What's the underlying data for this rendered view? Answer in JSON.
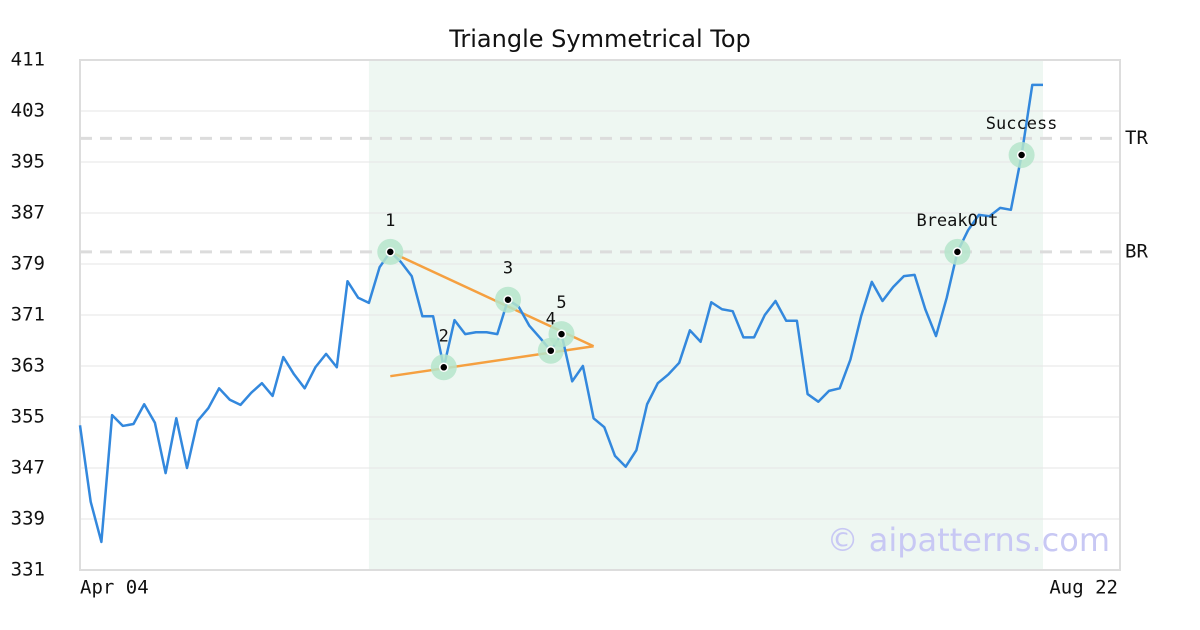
{
  "chart_data": {
    "type": "line",
    "title": "Triangle Symmetrical Top",
    "categories": [
      "Apr 04",
      null,
      null,
      null,
      null,
      null,
      null,
      null,
      null,
      null,
      null,
      null,
      null,
      null,
      null,
      null,
      null,
      null,
      null,
      null,
      null,
      null,
      null,
      null,
      null,
      null,
      null,
      null,
      null,
      null,
      null,
      null,
      null,
      null,
      null,
      null,
      null,
      null,
      null,
      null,
      null,
      null,
      null,
      null,
      null,
      null,
      null,
      null,
      null,
      null,
      null,
      null,
      null,
      null,
      null,
      null,
      null,
      null,
      null,
      null,
      null,
      null,
      null,
      null,
      null,
      null,
      null,
      null,
      null,
      null,
      null,
      null,
      null,
      null,
      null,
      null,
      null,
      null,
      null,
      null,
      null,
      null,
      null,
      null,
      null,
      null,
      null,
      null,
      null,
      null,
      "Aug 22"
    ],
    "series": [
      {
        "color": "#3388dd",
        "values": [
          353.7,
          341.7,
          335.4,
          355.3,
          353.6,
          353.9,
          357.0,
          354.1,
          346.2,
          354.8,
          347.0,
          354.4,
          356.4,
          359.5,
          357.7,
          356.9,
          358.8,
          360.3,
          358.3,
          364.4,
          361.7,
          359.5,
          362.8,
          364.9,
          362.8,
          376.3,
          373.7,
          372.9,
          378.5,
          380.9,
          379.3,
          377.1,
          370.8,
          370.8,
          362.8,
          370.2,
          368.0,
          368.3,
          368.3,
          368.0,
          373.4,
          372.3,
          369.3,
          367.4,
          365.4,
          368.0,
          360.6,
          363.0,
          354.8,
          353.4,
          348.9,
          347.2,
          349.8,
          357.0,
          360.3,
          361.7,
          363.5,
          368.6,
          366.8,
          373.0,
          371.9,
          371.6,
          367.5,
          367.5,
          371.0,
          373.2,
          370.1,
          370.1,
          358.6,
          357.4,
          359.1,
          359.5,
          364.0,
          370.8,
          376.2,
          373.2,
          375.4,
          377.1,
          377.3,
          371.9,
          367.7,
          373.7,
          380.9,
          384.3,
          386.7,
          386.5,
          387.8,
          387.5,
          396.1,
          407.1,
          407.1
        ]
      }
    ],
    "ylim": [
      331,
      411
    ],
    "yticks": [
      331,
      339,
      347,
      355,
      363,
      371,
      379,
      387,
      395,
      403,
      411
    ],
    "grid": true,
    "shade": {
      "from": 27,
      "to": 90,
      "color": "#eef7f2"
    },
    "hlines": [
      {
        "label": "TR",
        "value": 398.7
      },
      {
        "label": "BR",
        "value": 380.9
      }
    ],
    "trendlines": [
      {
        "x": [
          29,
          48
        ],
        "y": [
          380.9,
          366.1
        ],
        "color": "#f5a040"
      },
      {
        "x": [
          29,
          48
        ],
        "y": [
          361.4,
          366.1
        ],
        "color": "#f5a040"
      }
    ],
    "points": [
      {
        "label": "1",
        "index": 29,
        "value": 380.9
      },
      {
        "label": "2",
        "index": 34,
        "value": 362.8
      },
      {
        "label": "3",
        "index": 40,
        "value": 373.4
      },
      {
        "label": "4",
        "index": 44,
        "value": 365.4
      },
      {
        "label": "5",
        "index": 45,
        "value": 368.0
      },
      {
        "label": "BreakOut",
        "index": 82,
        "value": 380.9
      },
      {
        "label": "Success",
        "index": 88,
        "value": 396.1
      }
    ],
    "watermark": "© aipatterns.com"
  }
}
